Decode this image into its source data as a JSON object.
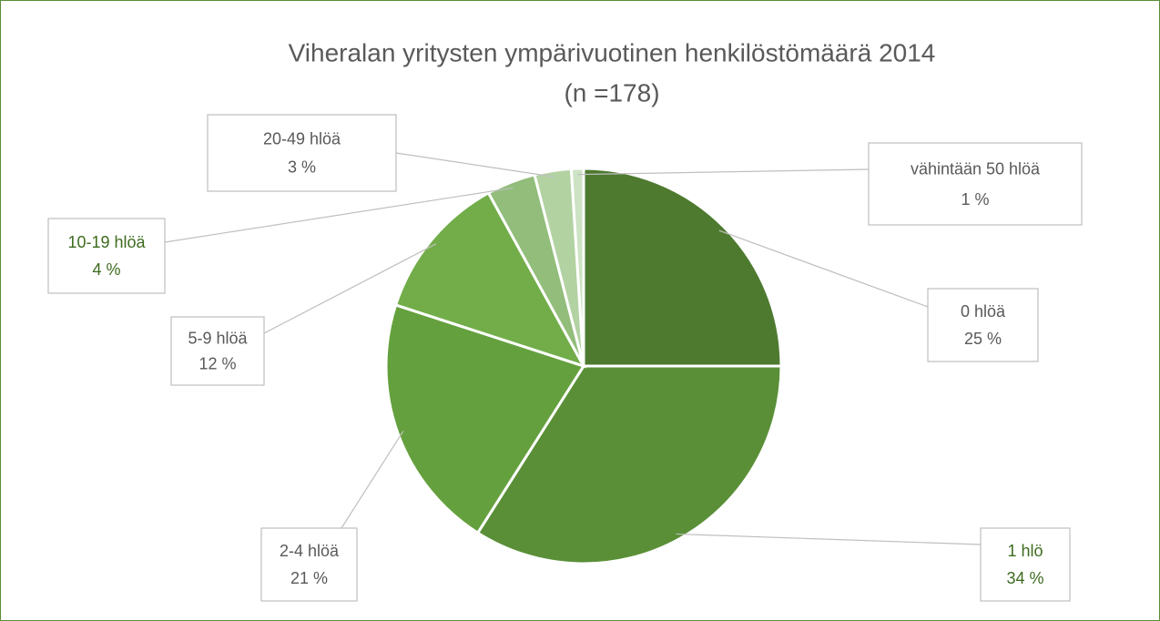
{
  "chart_data": {
    "type": "pie",
    "title": "Viheralan yritysten ympärivuotinen henkilöstömäärä 2014",
    "subtitle": "(n =178)",
    "categories": [
      "0 hlöä",
      "1 hlö",
      "2-4 hlöä",
      "5-9 hlöä",
      "10-19 hlöä",
      "20-49 hlöä",
      "vähintään 50 hlöä"
    ],
    "values": [
      25,
      34,
      21,
      12,
      4,
      3,
      1
    ],
    "value_labels": [
      "25 %",
      "34 %",
      "21 %",
      "12 %",
      "4 %",
      "3 %",
      "1 %"
    ],
    "colors": [
      "#4e7a30",
      "#5a8f37",
      "#65a03e",
      "#72ad49",
      "#92bd7b",
      "#b2d2a2",
      "#cde3c4"
    ],
    "label_colors": [
      "#595959",
      "#3d6b1e",
      "#595959",
      "#595959",
      "#3d6b1e",
      "#595959",
      "#595959"
    ]
  }
}
